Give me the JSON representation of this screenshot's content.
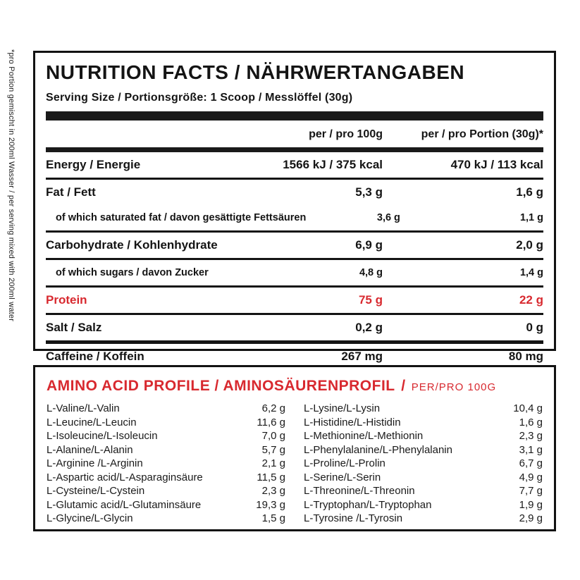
{
  "colors": {
    "accent_red": "#D8292F",
    "ink": "#141414"
  },
  "side_note": "*pro Portion gemischt in 200ml Wasser / per serving mixed with 200ml water",
  "nutrition": {
    "title": "NUTRITION FACTS / NÄHRWERTANGABEN",
    "serving_size": "Serving Size / Portionsgröße: 1 Scoop / Messlöffel (30g)",
    "col_100g": "per / pro 100g",
    "col_portion": "per / pro Portion (30g)*",
    "rows": [
      {
        "label": "Energy / Energie",
        "per_100g": "1566 kJ / 375 kcal",
        "per_portion": "470 kJ / 113 kcal",
        "indent": false,
        "red": false,
        "sep": "line"
      },
      {
        "label": "Fat / Fett",
        "per_100g": "5,3 g",
        "per_portion": "1,6 g",
        "indent": false,
        "red": false,
        "sep": "none"
      },
      {
        "label": "of which saturated fat / davon gesättigte Fettsäuren",
        "per_100g": "3,6 g",
        "per_portion": "1,1 g",
        "indent": true,
        "red": false,
        "sep": "line"
      },
      {
        "label": "Carbohydrate / Kohlenhydrate",
        "per_100g": "6,9 g",
        "per_portion": "2,0 g",
        "indent": false,
        "red": false,
        "sep": "line"
      },
      {
        "label": "of which sugars / davon Zucker",
        "per_100g": "4,8 g",
        "per_portion": "1,4 g",
        "indent": true,
        "red": false,
        "sep": "line"
      },
      {
        "label": "Protein",
        "per_100g": "75 g",
        "per_portion": "22 g",
        "indent": false,
        "red": true,
        "sep": "line"
      },
      {
        "label": "Salt / Salz",
        "per_100g": "0,2 g",
        "per_portion": "0 g",
        "indent": false,
        "red": false,
        "sep": "heavy"
      },
      {
        "label": "Caffeine / Koffein",
        "per_100g": "267 mg",
        "per_portion": "80 mg",
        "indent": false,
        "red": false,
        "sep": "none"
      }
    ]
  },
  "amino": {
    "title_bold": "AMINO ACID PROFILE / AMINOSÄURENPROFIL",
    "title_sep": "/",
    "title_unit": "PER/PRO 100G",
    "left": [
      {
        "name": "L-Valine/L-Valin",
        "value": "6,2 g"
      },
      {
        "name": "L-Leucine/L-Leucin",
        "value": "11,6 g"
      },
      {
        "name": "L-Isoleucine/L-Isoleucin",
        "value": "7,0 g"
      },
      {
        "name": "L-Alanine/L-Alanin",
        "value": "5,7 g"
      },
      {
        "name": "L-Arginine  /L-Arginin",
        "value": "2,1 g"
      },
      {
        "name": "L-Aspartic acid/L-Asparaginsäure",
        "value": "11,5 g"
      },
      {
        "name": "L-Cysteine/L-Cystein",
        "value": "2,3 g"
      },
      {
        "name": "L-Glutamic acid/L-Glutaminsäure",
        "value": "19,3 g"
      },
      {
        "name": "L-Glycine/L-Glycin",
        "value": "1,5 g"
      }
    ],
    "right": [
      {
        "name": "L-Lysine/L-Lysin",
        "value": "10,4 g"
      },
      {
        "name": "L-Histidine/L-Histidin",
        "value": "1,6 g"
      },
      {
        "name": "L-Methionine/L-Methionin",
        "value": "2,3 g"
      },
      {
        "name": "L-Phenylalanine/L-Phenylalanin",
        "value": "3,1 g"
      },
      {
        "name": "L-Proline/L-Prolin",
        "value": "6,7 g"
      },
      {
        "name": "L-Serine/L-Serin",
        "value": "4,9 g"
      },
      {
        "name": "L-Threonine/L-Threonin",
        "value": "7,7 g"
      },
      {
        "name": "L-Tryptophan/L-Tryptophan",
        "value": "1,9 g"
      },
      {
        "name": "L-Tyrosine  /L-Tyrosin",
        "value": "2,9 g"
      }
    ]
  }
}
